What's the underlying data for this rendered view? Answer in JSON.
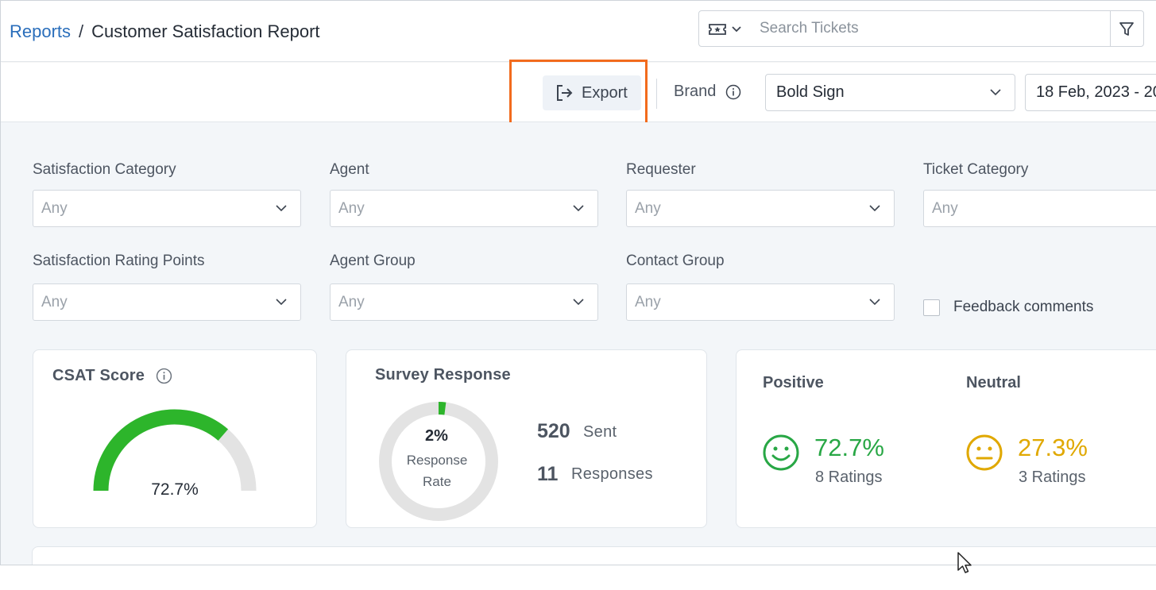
{
  "header": {
    "breadcrumb_root": "Reports",
    "breadcrumb_separator": "/",
    "page_title": "Customer Satisfaction Report",
    "search_placeholder": "Search Tickets"
  },
  "toolbar": {
    "export_label": "Export",
    "brand_label": "Brand",
    "brand_value": "Bold Sign",
    "date_range": "18 Feb, 2023 - 20"
  },
  "filters": [
    {
      "label": "Satisfaction Category",
      "value": "Any"
    },
    {
      "label": "Agent",
      "value": "Any"
    },
    {
      "label": "Requester",
      "value": "Any"
    },
    {
      "label": "Ticket Category",
      "value": "Any"
    },
    {
      "label": "Satisfaction Rating Points",
      "value": "Any"
    },
    {
      "label": "Agent Group",
      "value": "Any"
    },
    {
      "label": "Contact Group",
      "value": "Any"
    }
  ],
  "feedback_comments": {
    "label": "Feedback comments",
    "checked": false
  },
  "csat": {
    "title": "CSAT Score",
    "value": "72.7%",
    "fraction": 0.727
  },
  "survey": {
    "title": "Survey Response",
    "rate_pct": "2%",
    "rate_label": "Response Rate",
    "rate_fraction": 0.02,
    "sent_count": "520",
    "sent_label": "Sent",
    "responses_count": "11",
    "responses_label": "Responses"
  },
  "sentiment": {
    "positive": {
      "title": "Positive",
      "pct": "72.7%",
      "ratings": "8 Ratings"
    },
    "neutral": {
      "title": "Neutral",
      "pct": "27.3%",
      "ratings": "3 Ratings"
    }
  },
  "colors": {
    "accent_link": "#2a6ebb",
    "highlight": "#f26b1d",
    "positive": "#28a745",
    "neutral": "#e0a800",
    "gauge_fill": "#2db52b",
    "gauge_track": "#e3e3e3"
  },
  "icons": {
    "ticket_type": "ticket-icon",
    "filter": "filter-icon",
    "export": "export-icon",
    "info": "info-icon",
    "positive_face": "smile-face-icon",
    "neutral_face": "neutral-face-icon"
  }
}
